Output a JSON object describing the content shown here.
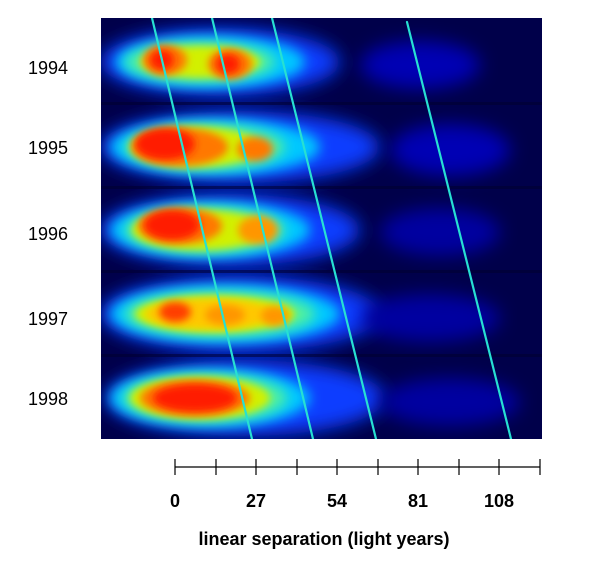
{
  "figure": {
    "background_color": "#00004a",
    "track_line_color": "#27e0d2",
    "year_labels": [
      "1994",
      "1995",
      "1996",
      "1997",
      "1998"
    ],
    "axis": {
      "title": "linear separation (light years)",
      "tick_labels": [
        "0",
        "27",
        "54",
        "81",
        "108"
      ]
    },
    "colormap": [
      "#00004a",
      "#0000c8",
      "#0a50ff",
      "#00c8ff",
      "#40f0b0",
      "#c8f000",
      "#ffc800",
      "#ff7800",
      "#ff1a00"
    ]
  }
}
